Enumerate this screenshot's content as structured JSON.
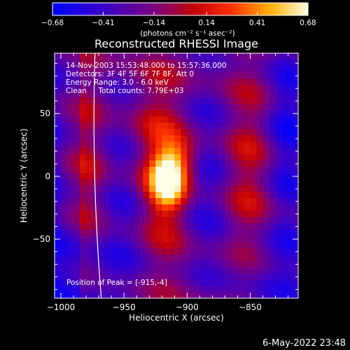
{
  "chart_data": {
    "type": "heatmap",
    "title": "Reconstructed RHESSI Image",
    "xlabel": "Heliocentric X (arcsec)",
    "ylabel": "Heliocentric Y (arcsec)",
    "xlim": [
      -1005,
      -812
    ],
    "ylim": [
      -97,
      98
    ],
    "x_ticks": [
      {
        "v": -1000,
        "label": "−1000"
      },
      {
        "v": -950,
        "label": "−950"
      },
      {
        "v": -900,
        "label": "−900"
      },
      {
        "v": -850,
        "label": "−850"
      }
    ],
    "y_ticks": [
      {
        "v": 50,
        "label": "50"
      },
      {
        "v": 0,
        "label": "0"
      },
      {
        "v": -50,
        "label": "−50"
      }
    ],
    "colorbar": {
      "min": -0.68,
      "max": 0.68,
      "ticks": [
        {
          "v": -0.68,
          "label": "−0.68"
        },
        {
          "v": -0.41,
          "label": "−0.41"
        },
        {
          "v": -0.14,
          "label": "−0.14"
        },
        {
          "v": 0.14,
          "label": "0.14"
        },
        {
          "v": 0.41,
          "label": "0.41"
        },
        {
          "v": 0.68,
          "label": "0.68"
        }
      ],
      "units": "(photons cm⁻² s⁻¹ asec⁻²)"
    },
    "peak": {
      "x": -915,
      "y": -4
    },
    "annotations": [
      "14-Nov-2003 15:53:48.000 to 15:57:36.000",
      "Detectors: 3F 4F 5F 6F 7F 8F, Att 0",
      "Energy Range: 3.0 - 6.0 keV",
      "Clean     Total counts: 7.79E+03"
    ],
    "peak_label": "Position of Peak = [-915,-4]",
    "grid": false
  },
  "footer": {
    "date": "6-May-2022 23:48"
  }
}
